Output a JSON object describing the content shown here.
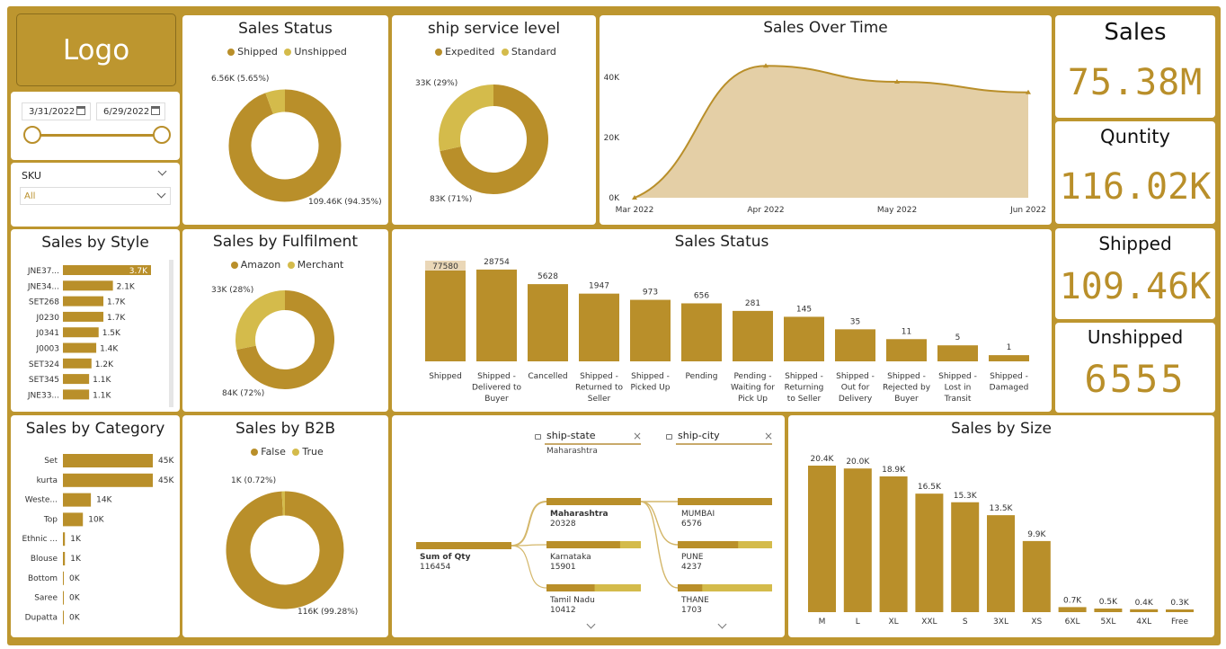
{
  "logo": "Logo",
  "date_filter": {
    "start": "3/31/2022",
    "end": "6/29/2022",
    "start_fraction": 0.0,
    "end_fraction": 1.0
  },
  "sku_filter": {
    "label": "SKU",
    "value": "All"
  },
  "kpis": {
    "sales": {
      "title": "Sales",
      "value": "75.38M"
    },
    "quantity": {
      "title": "Quntity",
      "value": "116.02K"
    },
    "shipped": {
      "title": "Shipped",
      "value": "109.46K"
    },
    "unshipped": {
      "title": "Unshipped",
      "value": "6555"
    }
  },
  "colors": {
    "accent": "#b98f2a",
    "light_accent": "#d4bb4b",
    "area_fill": "#e4cfa6"
  },
  "chart_data": [
    {
      "id": "sales_status_donut",
      "type": "pie",
      "title": "Sales Status",
      "legend": [
        "Shipped",
        "Unshipped"
      ],
      "slices": [
        {
          "name": "Shipped",
          "value": 109460,
          "label": "109.46K (94.35%)"
        },
        {
          "name": "Unshipped",
          "value": 6560,
          "label": "6.56K (5.65%)"
        }
      ]
    },
    {
      "id": "ship_service_donut",
      "type": "pie",
      "title": "ship service level",
      "legend": [
        "Expedited",
        "Standard"
      ],
      "slices": [
        {
          "name": "Expedited",
          "value": 83000,
          "label": "83K (71%)"
        },
        {
          "name": "Standard",
          "value": 33000,
          "label": "33K (29%)"
        }
      ]
    },
    {
      "id": "sales_over_time",
      "type": "area",
      "title": "Sales Over Time",
      "x": [
        "Mar 2022",
        "Apr 2022",
        "May 2022",
        "Jun 2022"
      ],
      "values": [
        0,
        43800,
        38500,
        35000
      ],
      "yticks": [
        "0K",
        "20K",
        "40K"
      ],
      "ylim": [
        0,
        50000
      ]
    },
    {
      "id": "sales_by_style",
      "type": "bar",
      "title": "Sales by Style",
      "orientation": "horizontal",
      "categories": [
        "JNE37...",
        "JNE34...",
        "SET268",
        "J0230",
        "J0341",
        "J0003",
        "SET324",
        "SET345",
        "JNE33..."
      ],
      "values": [
        3700,
        2100,
        1700,
        1700,
        1500,
        1400,
        1200,
        1100,
        1100
      ],
      "labels": [
        "3.7K",
        "2.1K",
        "1.7K",
        "1.7K",
        "1.5K",
        "1.4K",
        "1.2K",
        "1.1K",
        "1.1K"
      ]
    },
    {
      "id": "sales_by_fulfilment",
      "type": "pie",
      "title": "Sales by Fulfilment",
      "legend": [
        "Amazon",
        "Merchant"
      ],
      "slices": [
        {
          "name": "Amazon",
          "value": 84000,
          "label": "84K (72%)"
        },
        {
          "name": "Merchant",
          "value": 33000,
          "label": "33K (28%)"
        }
      ]
    },
    {
      "id": "sales_status_bar",
      "type": "bar",
      "title": "Sales Status",
      "categories": [
        "Shipped",
        "Shipped - Delivered to Buyer",
        "Cancelled",
        "Shipped - Returned to Seller",
        "Shipped - Picked Up",
        "Pending",
        "Pending - Waiting for Pick Up",
        "Shipped - Returning to Seller",
        "Shipped - Out for Delivery",
        "Shipped - Rejected by Buyer",
        "Shipped - Lost in Transit",
        "Shipped - Damaged"
      ],
      "category_lines": [
        [
          "Shipped"
        ],
        [
          "Shipped -",
          "Delivered to",
          "Buyer"
        ],
        [
          "Cancelled"
        ],
        [
          "Shipped -",
          "Returned to",
          "Seller"
        ],
        [
          "Shipped -",
          "Picked Up"
        ],
        [
          "Pending"
        ],
        [
          "Pending -",
          "Waiting for",
          "Pick Up"
        ],
        [
          "Shipped -",
          "Returning",
          "to Seller"
        ],
        [
          "Shipped -",
          "Out for",
          "Delivery"
        ],
        [
          "Shipped -",
          "Rejected by",
          "Buyer"
        ],
        [
          "Shipped -",
          "Lost in",
          "Transit"
        ],
        [
          "Shipped -",
          "Damaged"
        ]
      ],
      "values": [
        77580,
        28754,
        5628,
        1947,
        973,
        656,
        281,
        145,
        35,
        11,
        5,
        1
      ],
      "labels": [
        "77580",
        "28754",
        "5628",
        "1947",
        "973",
        "656",
        "281",
        "145",
        "35",
        "11",
        "5",
        "1"
      ],
      "scale": "log"
    },
    {
      "id": "sales_by_category",
      "type": "bar",
      "title": "Sales by Category",
      "orientation": "horizontal",
      "categories": [
        "Set",
        "kurta",
        "Weste...",
        "Top",
        "Ethnic ...",
        "Blouse",
        "Bottom",
        "Saree",
        "Dupatta"
      ],
      "values": [
        45000,
        45000,
        14000,
        10000,
        1000,
        1000,
        0,
        0,
        0
      ],
      "labels": [
        "45K",
        "45K",
        "14K",
        "10K",
        "1K",
        "1K",
        "0K",
        "0K",
        "0K"
      ]
    },
    {
      "id": "sales_by_b2b",
      "type": "pie",
      "title": "Sales by B2B",
      "legend": [
        "False",
        "True"
      ],
      "slices": [
        {
          "name": "False",
          "value": 116000,
          "label": "116K (99.28%)"
        },
        {
          "name": "True",
          "value": 1000,
          "label": "1K (0.72%)"
        }
      ]
    },
    {
      "id": "decomposition_tree",
      "type": "table",
      "title": "",
      "filters": [
        {
          "label": "ship-state",
          "selected": "Maharashtra"
        },
        {
          "label": "ship-city",
          "selected": ""
        }
      ],
      "root": {
        "label": "Sum of Qty",
        "value": "116454"
      },
      "states": [
        {
          "name": "Maharashtra",
          "value": "20328",
          "fraction": 1.0
        },
        {
          "name": "Karnataka",
          "value": "15901",
          "fraction": 0.78
        },
        {
          "name": "Tamil Nadu",
          "value": "10412",
          "fraction": 0.51
        }
      ],
      "cities": [
        {
          "name": "MUMBAI",
          "value": "6576",
          "fraction": 1.0
        },
        {
          "name": "PUNE",
          "value": "4237",
          "fraction": 0.64
        },
        {
          "name": "THANE",
          "value": "1703",
          "fraction": 0.26
        }
      ]
    },
    {
      "id": "sales_by_size",
      "type": "bar",
      "title": "Sales by Size",
      "categories": [
        "M",
        "L",
        "XL",
        "XXL",
        "S",
        "3XL",
        "XS",
        "6XL",
        "5XL",
        "4XL",
        "Free"
      ],
      "values": [
        20400,
        20000,
        18900,
        16500,
        15300,
        13500,
        9900,
        700,
        500,
        400,
        300
      ],
      "labels": [
        "20.4K",
        "20.0K",
        "18.9K",
        "16.5K",
        "15.3K",
        "13.5K",
        "9.9K",
        "0.7K",
        "0.5K",
        "0.4K",
        "0.3K"
      ],
      "ylim": [
        0,
        24000
      ]
    }
  ]
}
